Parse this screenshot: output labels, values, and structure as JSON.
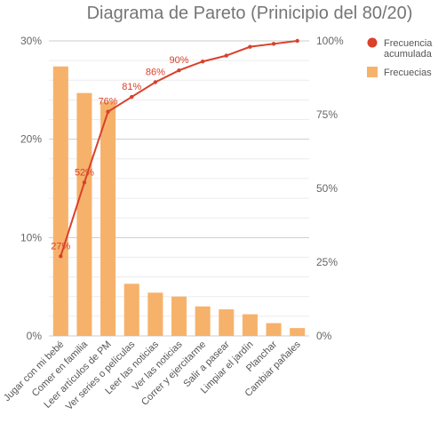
{
  "chart_data": {
    "type": "bar",
    "title": "Diagrama de Pareto (Prinicipio del 80/20)",
    "categories": [
      "Jugar con mi bebé",
      "Comer en familia",
      "Leer artículos de PM",
      "Ver series o películas",
      "Leer las noticias",
      "Ver las noticias",
      "Correr y ejercitarme",
      "Salir a pasear",
      "Limpiar el jardín",
      "Planchar",
      "Cambiar pañales"
    ],
    "series": [
      {
        "name": "Frecuecias",
        "type": "bar",
        "axis": "left",
        "color": "#f6b26b",
        "values": [
          27.4,
          24.7,
          23.8,
          5.3,
          4.4,
          4.0,
          3.0,
          2.7,
          2.2,
          1.3,
          0.8
        ]
      },
      {
        "name": "Frecuencia acumulada",
        "type": "line",
        "axis": "right",
        "color": "#d9412b",
        "values": [
          27,
          52,
          76,
          81,
          86,
          90,
          93,
          95,
          98,
          99,
          100
        ],
        "data_labels": [
          "27%",
          "52%",
          "76%",
          "81%",
          "86%",
          "90%",
          null,
          null,
          null,
          null,
          null
        ]
      }
    ],
    "y_left": {
      "min": 0,
      "max": 30,
      "ticks": [
        "0%",
        "10%",
        "20%",
        "30%"
      ]
    },
    "y_right": {
      "min": 0,
      "max": 100,
      "ticks": [
        "0%",
        "25%",
        "50%",
        "75%",
        "100%"
      ]
    },
    "grid": true,
    "legend_position": "right"
  }
}
